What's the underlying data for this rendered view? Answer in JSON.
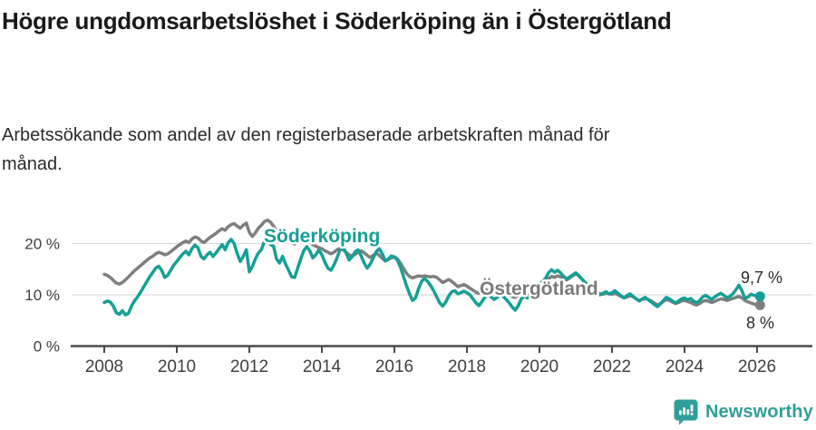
{
  "header": {
    "title": "Högre ungdomsarbetslöshet i Söderköping än i Östergötland",
    "subtitle": "Arbetssökande som andel av den registerbaserade arbetskraften månad för månad."
  },
  "chart_data": {
    "type": "line",
    "title": "Högre ungdomsarbetslöshet i Söderköping än i Östergötland",
    "subtitle": "Arbetssökande som andel av den registerbaserade arbetskraften månad för månad.",
    "unit": "%",
    "x_start_year": 2008,
    "points_per_year": 12,
    "x_ticks": [
      2008,
      2010,
      2012,
      2014,
      2016,
      2018,
      2020,
      2022,
      2024,
      2026
    ],
    "y_ticks": [
      {
        "value": 0,
        "label": "0 %"
      },
      {
        "value": 10,
        "label": "10 %"
      },
      {
        "value": 20,
        "label": "20 %"
      }
    ],
    "ylim": [
      0,
      26
    ],
    "grid": "horizontal",
    "legend_position": "inline-labels",
    "colors": {
      "gridline": "#d9d9d9",
      "axis": "#4b4b4b",
      "tick_label": "#404040",
      "value_label": "#2b2b2b"
    },
    "series": [
      {
        "name": "Söderköping",
        "color": "#169f97",
        "end_value": 9.7,
        "end_label": "9,7 %",
        "values": [
          8.5,
          8.8,
          8.6,
          7.8,
          6.5,
          6.2,
          6.9,
          6.1,
          6.4,
          7.8,
          8.8,
          9.6,
          10.5,
          11.5,
          12.5,
          13.5,
          14.3,
          15.2,
          15.6,
          14.8,
          13.4,
          13.8,
          14.8,
          15.8,
          16.5,
          17.3,
          18,
          18.5,
          17.8,
          19,
          19.7,
          19.2,
          17.5,
          17,
          17.8,
          18.3,
          17.5,
          18.2,
          19,
          19.8,
          18.8,
          20.2,
          20.8,
          20,
          18,
          16.5,
          17.5,
          18.8,
          14.5,
          15.5,
          17,
          18.2,
          18.8,
          20.5,
          21,
          19.8,
          19.5,
          17,
          16.2,
          17.5,
          16,
          14.8,
          13.5,
          13.4,
          15.2,
          17,
          18.6,
          19.4,
          18.6,
          17.2,
          17.8,
          18.8,
          17.8,
          16.4,
          15.2,
          14.8,
          15.8,
          17.2,
          18.8,
          19.3,
          18.2,
          16.8,
          17.4,
          18.4,
          18.8,
          17.6,
          16.2,
          15.2,
          16,
          17.2,
          18.4,
          19,
          18,
          16.6,
          17,
          17.6,
          17.4,
          16.8,
          15.4,
          13.6,
          11.8,
          10.2,
          8.9,
          9.4,
          11.2,
          12.6,
          13.2,
          12.6,
          11.8,
          10.8,
          9.6,
          8.4,
          7.8,
          8.6,
          9.8,
          10.6,
          10.8,
          10.2,
          10.4,
          10.7,
          10.4,
          10,
          9.2,
          8.4,
          7.9,
          8.7,
          9.6,
          10,
          9.6,
          9.1,
          9.5,
          10,
          9.7,
          9.1,
          8.4,
          7.6,
          7,
          7.9,
          9.2,
          9.8,
          9.4,
          9.9,
          10.6,
          11.4,
          12,
          12.6,
          13.2,
          14.3,
          14.9,
          14.4,
          14.8,
          14.3,
          13.6,
          13.1,
          13.5,
          13.9,
          14.3,
          13.8,
          13.1,
          12.4,
          11.7,
          11.1,
          10.7,
          10.3,
          10,
          10.3,
          10.6,
          10.2,
          10.4,
          10.8,
          10.3,
          9.8,
          9.4,
          9.9,
          10.2,
          9.7,
          9.2,
          8.8,
          9.2,
          9.5,
          9,
          8.6,
          8.1,
          7.7,
          8.2,
          8.9,
          9.5,
          9.2,
          8.8,
          8.4,
          8.8,
          9.2,
          9.4,
          9,
          9.3,
          8.8,
          8.4,
          8.9,
          9.6,
          9.9,
          9.5,
          9.1,
          9.6,
          10,
          10.3,
          9.9,
          9.4,
          9.7,
          10.2,
          11,
          11.9,
          10.8,
          9.3,
          9.6,
          10.1,
          9.9,
          9.8,
          9.7
        ]
      },
      {
        "name": "Östergötland",
        "color": "#7f7f7f",
        "end_value": 8,
        "end_label": "8 %",
        "values": [
          14,
          13.8,
          13.4,
          12.8,
          12.3,
          12.1,
          12.4,
          12.9,
          13.5,
          14.1,
          14.7,
          15.2,
          15.7,
          16.2,
          16.7,
          17.2,
          17.5,
          18,
          18.3,
          18.1,
          17.8,
          18,
          18.4,
          18.9,
          19.4,
          19.8,
          20.2,
          20.5,
          20.2,
          20.9,
          21.3,
          21.1,
          20.5,
          20.2,
          20.7,
          21.2,
          21.6,
          22,
          22.5,
          22.9,
          22.6,
          23.3,
          23.7,
          23.9,
          23.4,
          23,
          23.6,
          24,
          22.2,
          21.4,
          22.1,
          23,
          23.6,
          24.3,
          24.6,
          24.2,
          23.4,
          22.5,
          21.9,
          21.4,
          21,
          20.6,
          20.2,
          19.9,
          20.3,
          20.9,
          21.3,
          21,
          20.4,
          19.8,
          19.5,
          19.2,
          19,
          18.6,
          18.3,
          18,
          18.3,
          18.8,
          19.1,
          18.8,
          18.3,
          17.8,
          17.6,
          17.9,
          18.3,
          18.6,
          18.2,
          17.7,
          17.3,
          17.7,
          18.1,
          17.7,
          17.1,
          16.6,
          16.9,
          17.2,
          17.4,
          17,
          16.2,
          15.2,
          14.2,
          13.6,
          13.3,
          13.5,
          13.7,
          13.6,
          13.7,
          13.6,
          13.5,
          13.6,
          13.4,
          12.9,
          12.4,
          12.7,
          13,
          12.6,
          12.1,
          11.6,
          11.8,
          12,
          11.7,
          11.3,
          10.9,
          10.5,
          10.3,
          10.7,
          11.1,
          10.8,
          10.5,
          10.3,
          10.6,
          10.9,
          10.6,
          10.3,
          10,
          9.7,
          9.5,
          9.9,
          10.3,
          10.1,
          9.9,
          10.1,
          10.5,
          10.9,
          11.3,
          11.7,
          12.3,
          13.1,
          13.6,
          13.4,
          13.7,
          13.5,
          13.1,
          12.9,
          13.3,
          13.7,
          14.1,
          13.7,
          13.1,
          12.5,
          11.9,
          11.4,
          11,
          10.6,
          10.2,
          10.1,
          10.3,
          10.2,
          10.1,
          10.3,
          10,
          9.7,
          9.4,
          9.6,
          9.9,
          9.6,
          9.2,
          8.9,
          9.1,
          9.3,
          9.1,
          8.8,
          8.4,
          8,
          8.3,
          8.7,
          9.1,
          8.9,
          8.6,
          8.3,
          8.5,
          8.8,
          8.9,
          8.7,
          8.5,
          8.2,
          8,
          8.3,
          8.7,
          8.9,
          8.7,
          8.5,
          8.7,
          9,
          9.2,
          9.1,
          8.9,
          9.1,
          9.3,
          9.5,
          9.7,
          9.4,
          8.9,
          8.6,
          8.4,
          8.2,
          8.1,
          8
        ]
      }
    ]
  },
  "footer": {
    "brand": "Newsworthy",
    "brand_color": "#2f9e99",
    "logo_icon": "newsworthy-speech-bubble-bar-chart-icon"
  }
}
